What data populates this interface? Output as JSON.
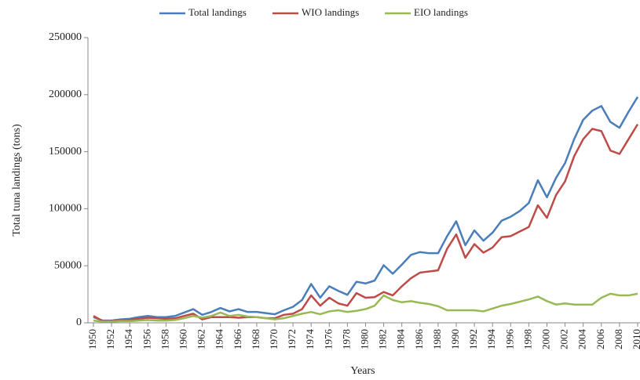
{
  "chart_data": {
    "type": "line",
    "x_label": "Years",
    "y_label": "Total tuna landings (tons)",
    "x": [
      1950,
      1951,
      1952,
      1953,
      1954,
      1955,
      1956,
      1957,
      1958,
      1959,
      1960,
      1961,
      1962,
      1963,
      1964,
      1965,
      1966,
      1967,
      1968,
      1969,
      1970,
      1971,
      1972,
      1973,
      1974,
      1975,
      1976,
      1977,
      1978,
      1979,
      1980,
      1981,
      1982,
      1983,
      1984,
      1985,
      1986,
      1987,
      1988,
      1989,
      1990,
      1991,
      1992,
      1993,
      1994,
      1995,
      1996,
      1997,
      1998,
      1999,
      2000,
      2001,
      2002,
      2003,
      2004,
      2005,
      2006,
      2007,
      2008,
      2009,
      2010
    ],
    "xlim": [
      1950,
      2010
    ],
    "xticks": [
      1950,
      1952,
      1954,
      1956,
      1958,
      1960,
      1962,
      1964,
      1966,
      1968,
      1970,
      1972,
      1974,
      1976,
      1978,
      1980,
      1982,
      1984,
      1986,
      1988,
      1990,
      1992,
      1994,
      1996,
      1998,
      2000,
      2002,
      2004,
      2006,
      2008,
      2010
    ],
    "ylim": [
      0,
      250000
    ],
    "yticks": [
      0,
      50000,
      100000,
      150000,
      200000,
      250000
    ],
    "grid": false,
    "legend": "top",
    "series": [
      {
        "name": "Total landings",
        "color": "#4a7ebb",
        "values": [
          5000,
          2000,
          2000,
          3000,
          3500,
          5000,
          6000,
          5000,
          5000,
          6000,
          9000,
          12000,
          7000,
          9500,
          13000,
          10000,
          12000,
          9500,
          9500,
          8500,
          7500,
          11000,
          14000,
          20000,
          34000,
          22000,
          32000,
          28000,
          24500,
          36000,
          34500,
          37000,
          50500,
          43000,
          51000,
          59500,
          62000,
          61000,
          61000,
          76000,
          89000,
          68000,
          81000,
          72000,
          79000,
          89500,
          93000,
          98000,
          105000,
          125000,
          110000,
          127000,
          140000,
          161000,
          178000,
          186000,
          190000,
          176000,
          171000,
          185000,
          198000
        ]
      },
      {
        "name": "WIO landings",
        "color": "#be4b48",
        "values": [
          6000,
          1500,
          1500,
          2000,
          2500,
          3500,
          4500,
          4000,
          3500,
          4000,
          6000,
          8000,
          3000,
          5000,
          5000,
          5000,
          4500,
          5000,
          5000,
          4000,
          4000,
          7000,
          8000,
          12000,
          24000,
          15000,
          22000,
          17000,
          15000,
          26000,
          22000,
          22500,
          27000,
          24000,
          32000,
          39000,
          44000,
          45000,
          46000,
          65000,
          77500,
          57000,
          69000,
          61500,
          66000,
          75000,
          76000,
          80000,
          84000,
          103000,
          92000,
          112000,
          124000,
          146000,
          161000,
          170000,
          168000,
          151000,
          148000,
          161000,
          174000
        ]
      },
      {
        "name": "EIO landings",
        "color": "#98b954",
        "values": [
          2000,
          1000,
          1000,
          1500,
          1500,
          2000,
          2500,
          2000,
          2000,
          2500,
          4000,
          6000,
          4500,
          6000,
          9000,
          6000,
          7000,
          5500,
          5000,
          4000,
          3000,
          4000,
          6000,
          8000,
          9500,
          7500,
          10000,
          11000,
          9500,
          10500,
          12000,
          15000,
          24000,
          20000,
          18000,
          19000,
          17500,
          16500,
          14500,
          11000,
          11000,
          11000,
          11000,
          10000,
          12500,
          15000,
          16500,
          18500,
          20500,
          23000,
          19000,
          16000,
          17000,
          16000,
          16000,
          16000,
          22000,
          25500,
          24000,
          24000,
          25500
        ]
      }
    ]
  }
}
